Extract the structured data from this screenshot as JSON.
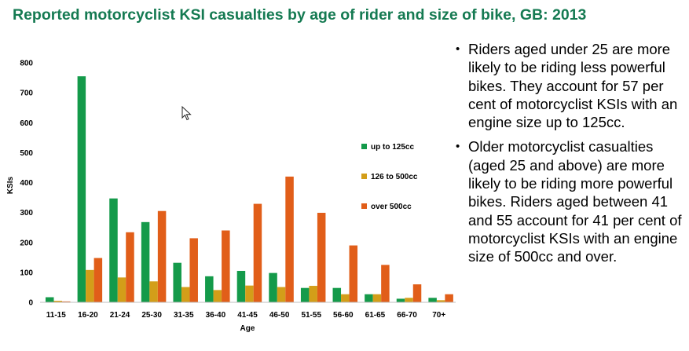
{
  "title": "Reported motorcyclist KSI casualties by age of rider and size of bike, GB: 2013",
  "chart_data": {
    "type": "bar",
    "categories": [
      "11-15",
      "16-20",
      "21-24",
      "25-30",
      "31-35",
      "36-40",
      "41-45",
      "46-50",
      "51-55",
      "56-60",
      "61-65",
      "66-70",
      "70+"
    ],
    "series": [
      {
        "name": "up to 125cc",
        "color": "#149a4a",
        "values": [
          17,
          755,
          347,
          268,
          132,
          87,
          105,
          98,
          48,
          48,
          27,
          12,
          15
        ]
      },
      {
        "name": "126 to 500cc",
        "color": "#d39e19",
        "values": [
          5,
          108,
          83,
          70,
          51,
          41,
          56,
          51,
          55,
          27,
          27,
          15,
          7
        ]
      },
      {
        "name": "over 500cc",
        "color": "#e15e19",
        "values": [
          3,
          148,
          234,
          305,
          214,
          240,
          329,
          420,
          299,
          190,
          125,
          60,
          27
        ]
      }
    ],
    "xlabel": "Age",
    "ylabel": "KSIs",
    "ylim": [
      0,
      800
    ],
    "yticks": [
      0,
      100,
      200,
      300,
      400,
      500,
      600,
      700,
      800
    ],
    "legend_position": "right"
  },
  "bullets": [
    "Riders aged under 25 are more likely to be riding less powerful bikes. They account for 57 per cent of motorcyclist KSIs with an engine size up to 125cc.",
    "Older motorcyclist casualties (aged 25 and above) are more likely to be riding more powerful bikes. Riders aged between 41 and 55 account for 41 per cent of motorcyclist KSIs with an engine size of 500cc and over."
  ],
  "bullet_symbol": "•"
}
